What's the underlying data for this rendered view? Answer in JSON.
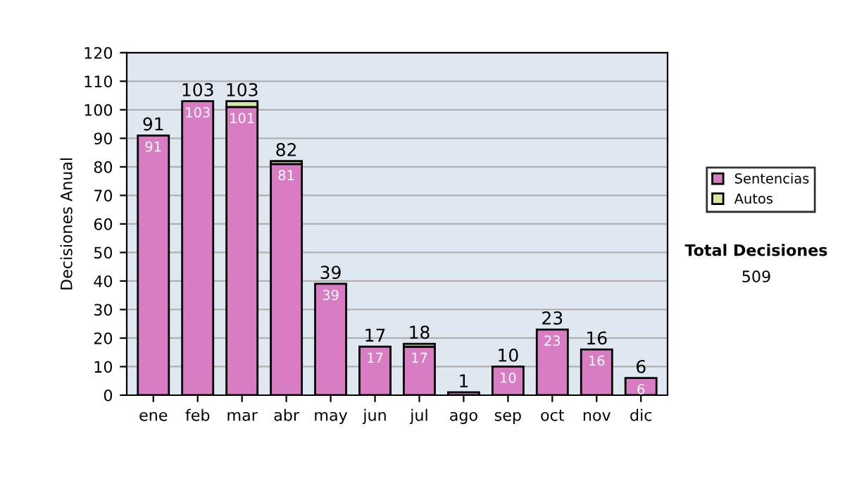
{
  "chart_data": {
    "type": "bar",
    "stacked": true,
    "ylabel": "Decisiones Anual",
    "categories": [
      "ene",
      "feb",
      "mar",
      "abr",
      "may",
      "jun",
      "jul",
      "ago",
      "sep",
      "oct",
      "nov",
      "dic"
    ],
    "series": [
      {
        "name": "Sentencias",
        "color": "#d87cc4",
        "values": [
          91,
          103,
          101,
          81,
          39,
          17,
          17,
          1,
          10,
          23,
          16,
          6
        ],
        "value_labels": [
          "91",
          "103",
          "101",
          "81",
          "39",
          "17",
          "17",
          null,
          "10",
          "23",
          "16",
          "6"
        ]
      },
      {
        "name": "Autos",
        "color": "#d4e8a0",
        "values": [
          null,
          null,
          2,
          1,
          null,
          null,
          1,
          null,
          null,
          null,
          null,
          null
        ]
      }
    ],
    "totals": [
      "91",
      "103",
      "103",
      "82",
      "39",
      "17",
      "18",
      "1",
      "10",
      "23",
      "16",
      "6"
    ],
    "ylim": [
      0,
      120
    ],
    "yticks": [
      0,
      10,
      20,
      30,
      40,
      50,
      60,
      70,
      80,
      90,
      100,
      110,
      120
    ],
    "grid": "y",
    "legend": "right",
    "annotations": [
      "Total Decisiones",
      "509"
    ]
  }
}
